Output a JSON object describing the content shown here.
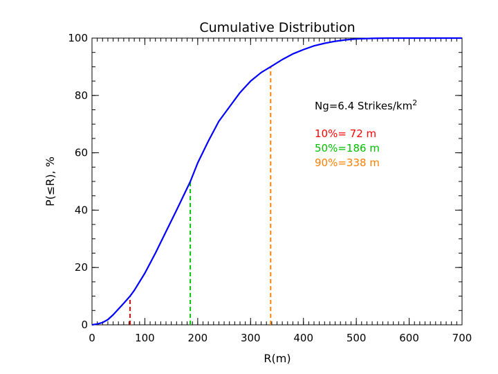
{
  "chart_data": {
    "type": "line",
    "title": "Cumulative Distribution",
    "xlabel": "R(m)",
    "ylabel": "P(≤R), %",
    "xlim": [
      0,
      700
    ],
    "ylim": [
      0,
      100
    ],
    "x_ticks": [
      0,
      100,
      200,
      300,
      400,
      500,
      600,
      700
    ],
    "y_ticks": [
      0,
      20,
      40,
      60,
      80,
      100
    ],
    "x_tick_labels": [
      "0",
      "100",
      "200",
      "300",
      "400",
      "500",
      "600",
      "700"
    ],
    "y_tick_labels": [
      "0",
      "20",
      "40",
      "60",
      "80",
      "100"
    ],
    "grid": false,
    "series": [
      {
        "color": "#0000ff",
        "x": [
          0,
          10,
          20,
          30,
          40,
          50,
          60,
          72,
          80,
          100,
          120,
          140,
          160,
          186,
          200,
          220,
          240,
          260,
          280,
          300,
          320,
          338,
          360,
          380,
          400,
          420,
          440,
          460,
          480,
          500,
          530,
          560,
          600,
          650,
          700
        ],
        "y": [
          0,
          0.3,
          0.8,
          1.8,
          3.5,
          5.5,
          7.5,
          10,
          12,
          18,
          25,
          32.5,
          40,
          50,
          56.5,
          64,
          71,
          76,
          81,
          85,
          88,
          90,
          92.5,
          94.5,
          96,
          97.3,
          98.2,
          98.9,
          99.4,
          99.7,
          99.9,
          100,
          100,
          100,
          100
        ]
      }
    ],
    "markers": [
      {
        "x": 72,
        "y": 10,
        "color": "#ff0000"
      },
      {
        "x": 186,
        "y": 50,
        "color": "#00c000"
      },
      {
        "x": 338,
        "y": 90,
        "color": "#ff7f00"
      }
    ],
    "annotations": [
      {
        "text": "Ng=6.4 Strikes/km",
        "superscript": "2",
        "color": "#000000"
      },
      {
        "text": "10%= 72 m",
        "color": "#ff0000"
      },
      {
        "text": "50%=186 m",
        "color": "#00c000"
      },
      {
        "text": "90%=338 m",
        "color": "#ff7f00"
      }
    ]
  }
}
